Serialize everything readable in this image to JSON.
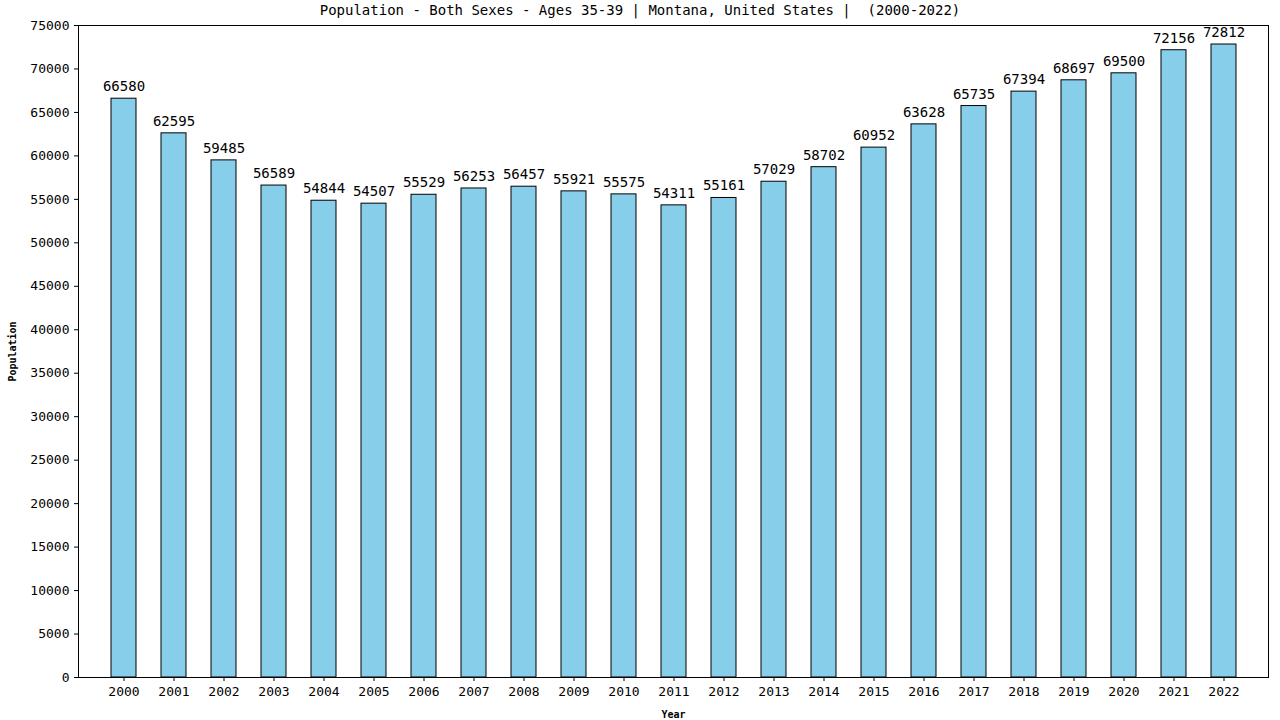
{
  "chart_data": {
    "type": "bar",
    "title": "Population - Both Sexes - Ages 35-39 | Montana, United States |  (2000-2022)",
    "x_label": "Year",
    "y_label": "Population",
    "categories": [
      "2000",
      "2001",
      "2002",
      "2003",
      "2004",
      "2005",
      "2006",
      "2007",
      "2008",
      "2009",
      "2010",
      "2011",
      "2012",
      "2013",
      "2014",
      "2015",
      "2016",
      "2017",
      "2018",
      "2019",
      "2020",
      "2021",
      "2022"
    ],
    "values": [
      66580,
      62595,
      59485,
      56589,
      54844,
      54507,
      55529,
      56253,
      56457,
      55921,
      55575,
      54311,
      55161,
      57029,
      58702,
      60952,
      63628,
      65735,
      67394,
      68697,
      69500,
      72156,
      72812
    ],
    "color": "#87ceeb",
    "ylim": [
      0,
      75000
    ],
    "yticks": [
      0,
      5000,
      10000,
      15000,
      20000,
      25000,
      30000,
      35000,
      40000,
      45000,
      50000,
      55000,
      60000,
      65000,
      70000,
      75000
    ],
    "grid": false,
    "data_labels": true
  }
}
